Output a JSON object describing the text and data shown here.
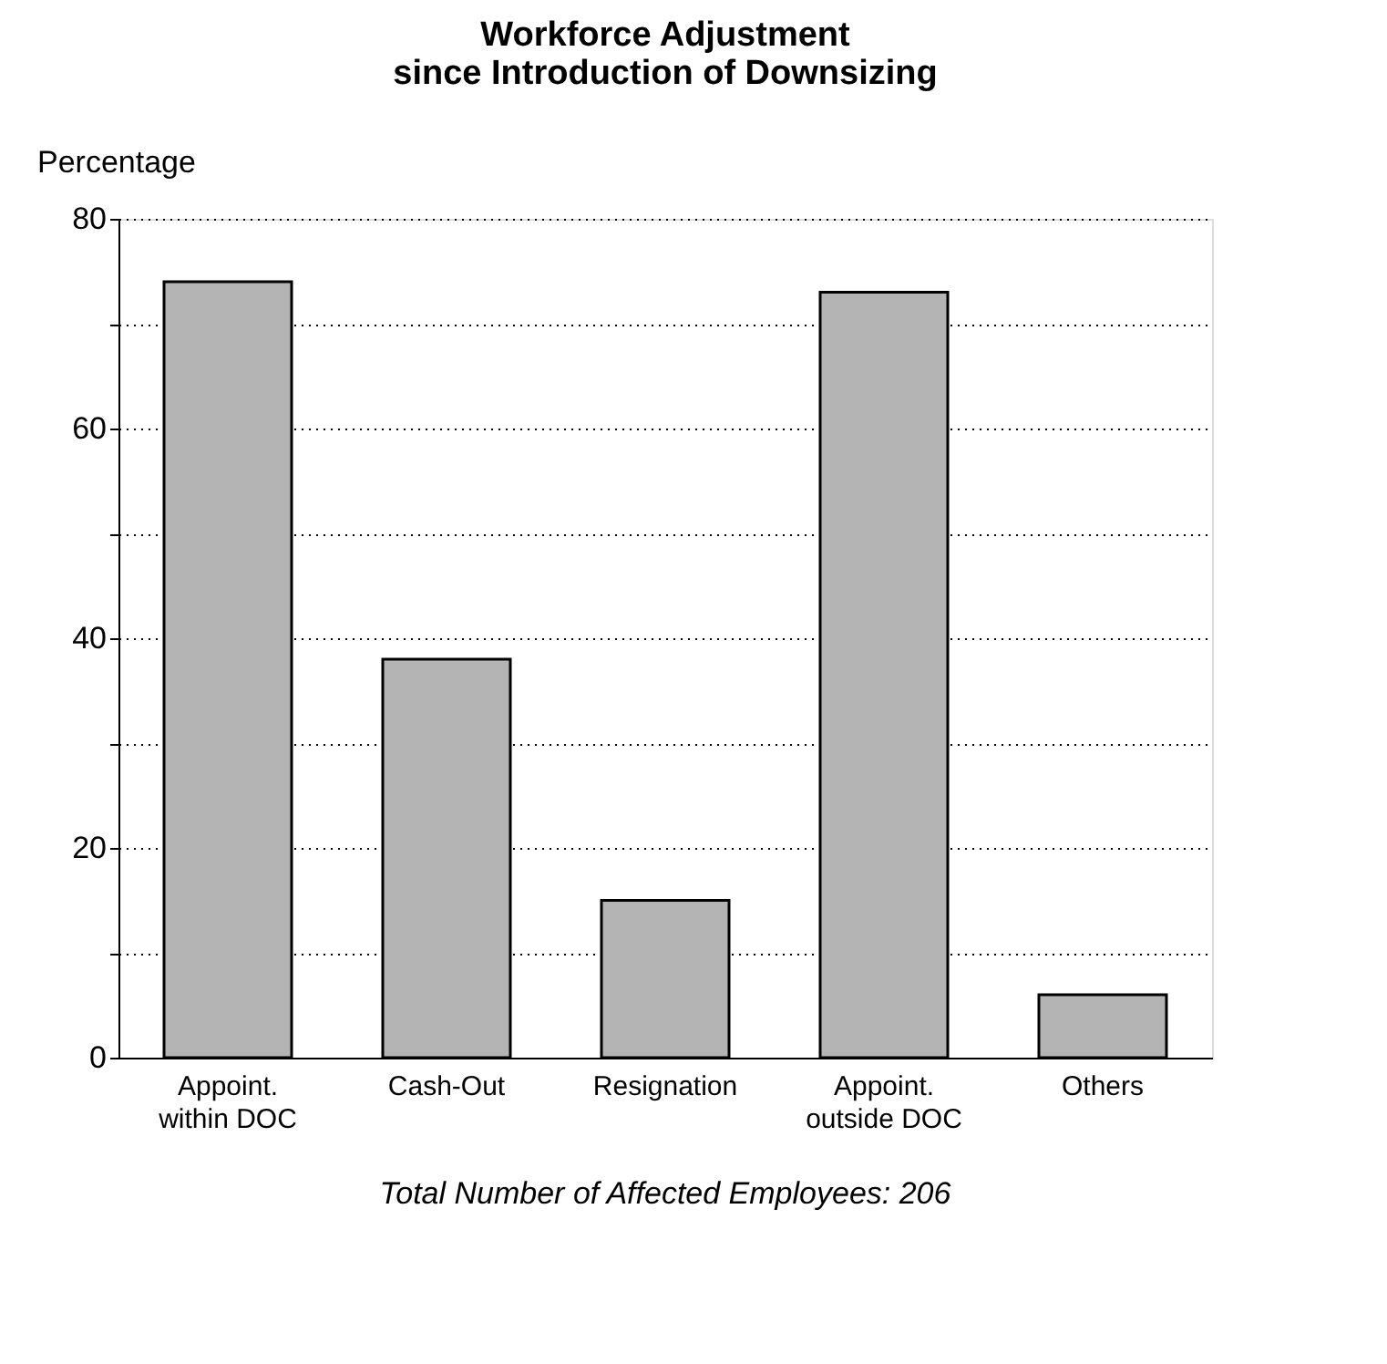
{
  "chart_data": {
    "type": "bar",
    "title": [
      "Workforce Adjustment",
      "since Introduction of Downsizing"
    ],
    "ylabel": "Percentage",
    "categories": [
      "Appoint.\nwithin DOC",
      "Cash-Out",
      "Resignation",
      "Appoint.\noutside DOC",
      "Others"
    ],
    "values": [
      74,
      38,
      15,
      73,
      6
    ],
    "color": "#b4b4b4",
    "ylim": [
      0,
      80
    ],
    "yticks": [
      0,
      {
        "value": 10,
        "label": null
      },
      20,
      {
        "value": 30,
        "label": null
      },
      40,
      {
        "value": 50,
        "label": null
      },
      60,
      {
        "value": 70,
        "label": null
      },
      80
    ],
    "grid": "y",
    "line_style": "dotted",
    "annotations": [
      "Total Number of Affected Employees: 206"
    ]
  }
}
